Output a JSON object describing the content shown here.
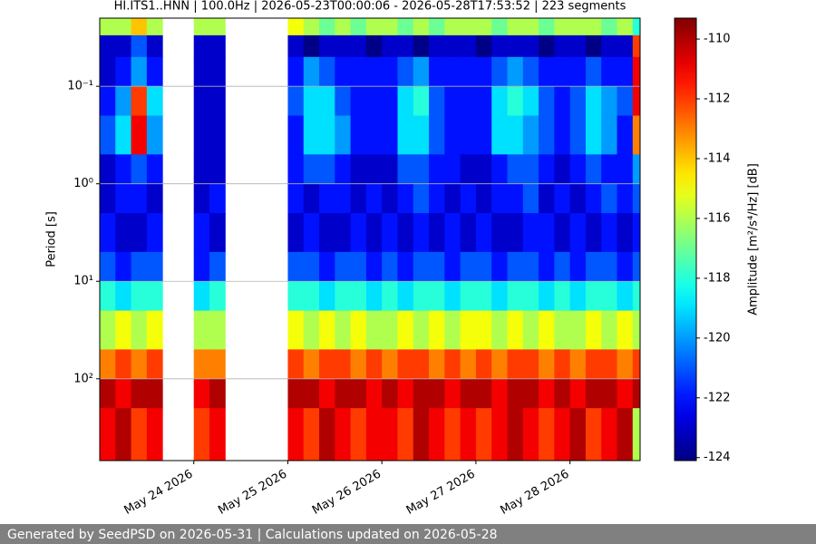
{
  "chart_data": {
    "type": "heatmap",
    "title": "HI.ITS1..HNN | 100.0Hz | 2026-05-23T00:00:06 - 2026-05-28T17:53:52 | 223 segments",
    "ylabel": "Period [s]",
    "colorbar_label": "Amplitude [m²/s⁴/Hz] [dB]",
    "footer": "Generated by SeedPSD on 2026-05-31 | Calculations updated on 2026-05-28",
    "colormap": "jet",
    "ylog": true,
    "yaxis_inverted": true,
    "grid": true,
    "xlim": [
      "2026-05-23T00:00:06",
      "2026-05-28T17:53:52"
    ],
    "xticks": [
      {
        "value": "2026-05-24T00:00:00",
        "label": "May 24 2026"
      },
      {
        "value": "2026-05-25T00:00:00",
        "label": "May 25 2026"
      },
      {
        "value": "2026-05-26T00:00:00",
        "label": "May 26 2026"
      },
      {
        "value": "2026-05-27T00:00:00",
        "label": "May 27 2026"
      },
      {
        "value": "2026-05-28T00:00:00",
        "label": "May 28 2026"
      }
    ],
    "ylim": [
      0.02,
      690
    ],
    "yticks": [
      {
        "value": 0.1,
        "label": "10⁻¹"
      },
      {
        "value": 1,
        "label": "10⁰"
      },
      {
        "value": 10,
        "label": "10¹"
      },
      {
        "value": 100,
        "label": "10²"
      }
    ],
    "clim": [
      -124.1,
      -109.3
    ],
    "cticks": [
      -110,
      -112,
      -114,
      -116,
      -118,
      -120,
      -122,
      -124
    ],
    "x_bins": [
      "2026-05-23T00:00:00",
      "2026-05-23T04:00:00",
      "2026-05-23T08:00:00",
      "2026-05-23T12:00:00",
      "2026-05-23T16:00:00",
      "2026-05-23T20:00:00",
      "2026-05-24T00:00:00",
      "2026-05-24T04:00:00",
      "2026-05-24T08:00:00",
      "2026-05-24T12:00:00",
      "2026-05-24T16:00:00",
      "2026-05-24T20:00:00",
      "2026-05-25T00:00:00",
      "2026-05-25T04:00:00",
      "2026-05-25T08:00:00",
      "2026-05-25T12:00:00",
      "2026-05-25T16:00:00",
      "2026-05-25T20:00:00",
      "2026-05-26T00:00:00",
      "2026-05-26T04:00:00",
      "2026-05-26T08:00:00",
      "2026-05-26T12:00:00",
      "2026-05-26T16:00:00",
      "2026-05-26T20:00:00",
      "2026-05-27T00:00:00",
      "2026-05-27T04:00:00",
      "2026-05-27T08:00:00",
      "2026-05-27T12:00:00",
      "2026-05-27T16:00:00",
      "2026-05-27T20:00:00",
      "2026-05-28T00:00:00",
      "2026-05-28T04:00:00",
      "2026-05-28T08:00:00",
      "2026-05-28T12:00:00",
      "2026-05-28T16:00:00",
      "2026-05-28T20:00:00"
    ],
    "y_bins": [
      0.02,
      0.03,
      0.05,
      0.1,
      0.2,
      0.5,
      1,
      2,
      5,
      10,
      20,
      50,
      100,
      200,
      690
    ],
    "z": [
      [
        -116,
        -116,
        -114,
        -116,
        null,
        null,
        -116,
        -116,
        null,
        null,
        null,
        null,
        -115,
        -116,
        -117,
        -116,
        -117,
        -116,
        -116,
        -117,
        -116,
        -117,
        -116,
        -116,
        -116,
        -117,
        -116,
        -116,
        -117,
        -116,
        -116,
        -116,
        -117,
        -116,
        -118
      ],
      [
        -123,
        -123,
        -121,
        -123,
        null,
        null,
        -123,
        -123,
        null,
        null,
        null,
        null,
        -123,
        -124,
        -123,
        -123,
        -123,
        -124,
        -123,
        -123,
        -124,
        -123,
        -123,
        -123,
        -124,
        -123,
        -123,
        -123,
        -124,
        -123,
        -123,
        -124,
        -123,
        -123,
        -112
      ],
      [
        -123,
        -122,
        -120,
        -122,
        null,
        null,
        -123,
        -123,
        null,
        null,
        null,
        null,
        -122,
        -120,
        -121,
        -122,
        -122,
        -122,
        -122,
        -121,
        -120,
        -122,
        -122,
        -122,
        -122,
        -121,
        -120,
        -121,
        -122,
        -122,
        -122,
        -121,
        -122,
        -122,
        -111
      ],
      [
        -122,
        -120,
        -112,
        -119,
        null,
        null,
        -123,
        -123,
        null,
        null,
        null,
        null,
        -121,
        -119,
        -119,
        -121,
        -122,
        -122,
        -122,
        -119,
        -118,
        -121,
        -122,
        -122,
        -122,
        -119,
        -118,
        -119,
        -121,
        -122,
        -121,
        -119,
        -120,
        -121,
        -111
      ],
      [
        -121,
        -119,
        -111,
        -120,
        null,
        null,
        -123,
        -123,
        null,
        null,
        null,
        null,
        -122,
        -119,
        -119,
        -120,
        -122,
        -122,
        -122,
        -119,
        -119,
        -121,
        -122,
        -122,
        -122,
        -119,
        -119,
        -120,
        -121,
        -122,
        -121,
        -119,
        -120,
        -122,
        -113
      ],
      [
        -123,
        -122,
        -121,
        -122,
        null,
        null,
        -123,
        -123,
        null,
        null,
        null,
        null,
        -122,
        -121,
        -121,
        -122,
        -123,
        -123,
        -123,
        -121,
        -121,
        -122,
        -122,
        -123,
        -123,
        -122,
        -121,
        -121,
        -122,
        -123,
        -122,
        -121,
        -122,
        -122,
        -120
      ],
      [
        -123,
        -122,
        -122,
        -123,
        null,
        null,
        -123,
        -122,
        null,
        null,
        null,
        null,
        -122,
        -123,
        -122,
        -122,
        -123,
        -122,
        -123,
        -122,
        -121,
        -122,
        -123,
        -122,
        -123,
        -122,
        -122,
        -121,
        -123,
        -122,
        -123,
        -122,
        -121,
        -122,
        -121
      ],
      [
        -122,
        -123,
        -123,
        -122,
        null,
        null,
        -122,
        -123,
        null,
        null,
        null,
        null,
        -123,
        -122,
        -123,
        -123,
        -122,
        -123,
        -122,
        -123,
        -122,
        -123,
        -122,
        -123,
        -122,
        -123,
        -123,
        -122,
        -122,
        -123,
        -122,
        -123,
        -122,
        -123,
        -122
      ],
      [
        -121,
        -122,
        -121,
        -121,
        null,
        null,
        -122,
        -121,
        null,
        null,
        null,
        null,
        -121,
        -121,
        -122,
        -121,
        -121,
        -122,
        -121,
        -122,
        -121,
        -121,
        -122,
        -121,
        -121,
        -122,
        -121,
        -121,
        -122,
        -121,
        -122,
        -121,
        -121,
        -122,
        -121
      ],
      [
        -118,
        -119,
        -118,
        -118,
        null,
        null,
        -119,
        -118,
        null,
        null,
        null,
        null,
        -118,
        -118,
        -119,
        -118,
        -118,
        -119,
        -118,
        -119,
        -118,
        -118,
        -119,
        -118,
        -118,
        -119,
        -118,
        -118,
        -119,
        -118,
        -119,
        -118,
        -118,
        -119,
        -118
      ],
      [
        -116,
        -115,
        -116,
        -115,
        null,
        null,
        -116,
        -116,
        null,
        null,
        null,
        null,
        -115,
        -116,
        -115,
        -116,
        -115,
        -116,
        -116,
        -115,
        -116,
        -115,
        -116,
        -115,
        -115,
        -116,
        -115,
        -116,
        -115,
        -116,
        -116,
        -115,
        -116,
        -115,
        -116
      ],
      [
        -113,
        -112,
        -113,
        -112,
        null,
        null,
        -113,
        -113,
        null,
        null,
        null,
        null,
        -112,
        -113,
        -112,
        -112,
        -113,
        -112,
        -113,
        -112,
        -112,
        -113,
        -112,
        -113,
        -112,
        -113,
        -112,
        -112,
        -113,
        -112,
        -113,
        -112,
        -112,
        -113,
        -112
      ],
      [
        -110,
        -111,
        -110,
        -110,
        null,
        null,
        -111,
        -110,
        null,
        null,
        null,
        null,
        -110,
        -110,
        -111,
        -110,
        -110,
        -111,
        -110,
        -111,
        -110,
        -110,
        -111,
        -110,
        -110,
        -111,
        -110,
        -110,
        -111,
        -110,
        -111,
        -110,
        -110,
        -111,
        -110
      ],
      [
        -111,
        -110,
        -112,
        -111,
        null,
        null,
        -112,
        -111,
        null,
        null,
        null,
        null,
        -111,
        -112,
        -110,
        -111,
        -112,
        -111,
        -111,
        -112,
        -110,
        -111,
        -112,
        -111,
        -112,
        -111,
        -110,
        -111,
        -112,
        -111,
        -110,
        -112,
        -111,
        -110,
        -116
      ]
    ]
  }
}
